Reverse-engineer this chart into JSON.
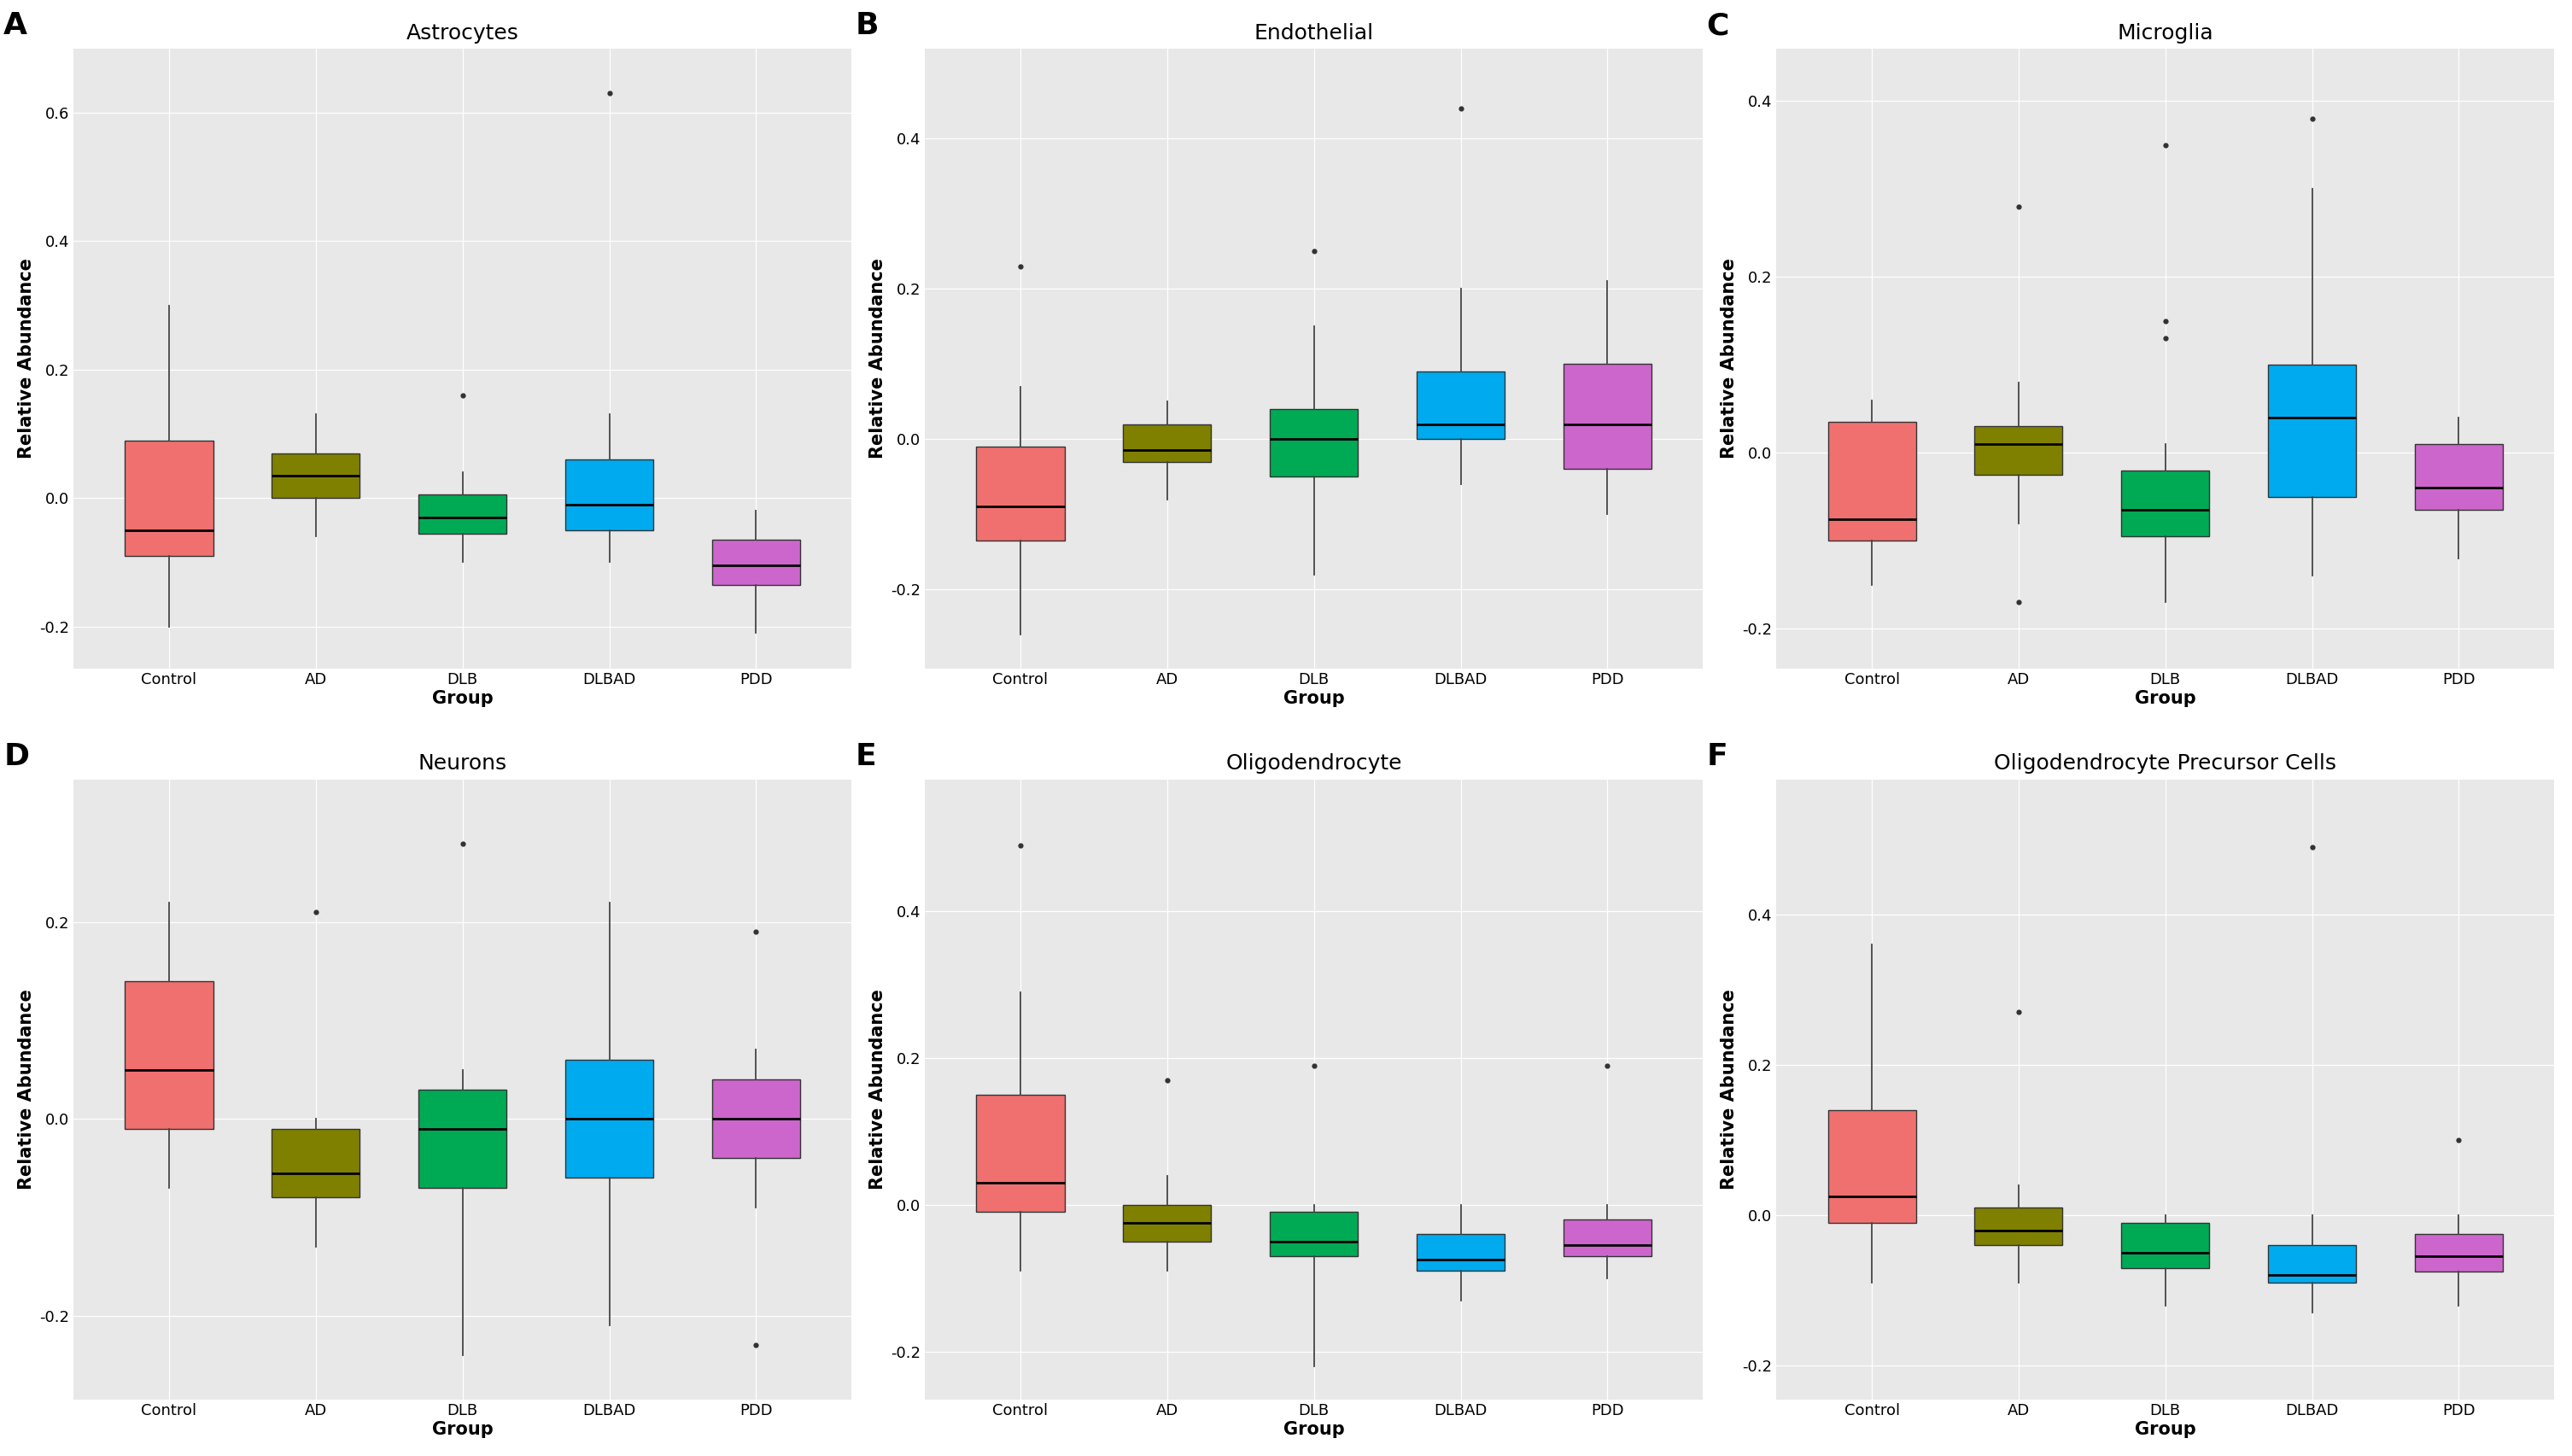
{
  "titles": [
    "Astrocytes",
    "Endothelial",
    "Microglia",
    "Neurons",
    "Oligodendrocyte",
    "Oligodendrocyte Precursor Cells"
  ],
  "panel_labels": [
    "A",
    "B",
    "C",
    "D",
    "E",
    "F"
  ],
  "groups": [
    "Control",
    "AD",
    "DLB",
    "DLBAD",
    "PDD"
  ],
  "colors": [
    "#F07070",
    "#808000",
    "#00AA55",
    "#00AAEE",
    "#CC66CC"
  ],
  "ylabel": "Relative Abundance",
  "xlabel": "Group",
  "background_color": "#E8E8E8",
  "box_data": {
    "Astrocytes": {
      "Control": {
        "q1": -0.09,
        "median": -0.05,
        "q3": 0.09,
        "whislo": -0.2,
        "whishi": 0.3,
        "fliers": []
      },
      "AD": {
        "q1": 0.0,
        "median": 0.035,
        "q3": 0.07,
        "whislo": -0.06,
        "whishi": 0.13,
        "fliers": []
      },
      "DLB": {
        "q1": -0.055,
        "median": -0.03,
        "q3": 0.005,
        "whislo": -0.1,
        "whishi": 0.04,
        "fliers": [
          0.16
        ]
      },
      "DLBAD": {
        "q1": -0.05,
        "median": -0.01,
        "q3": 0.06,
        "whislo": -0.1,
        "whishi": 0.13,
        "fliers": [
          0.63
        ]
      },
      "PDD": {
        "q1": -0.135,
        "median": -0.105,
        "q3": -0.065,
        "whislo": -0.21,
        "whishi": -0.02,
        "fliers": []
      }
    },
    "Endothelial": {
      "Control": {
        "q1": -0.135,
        "median": -0.09,
        "q3": -0.01,
        "whislo": -0.26,
        "whishi": 0.07,
        "fliers": [
          0.23
        ]
      },
      "AD": {
        "q1": -0.03,
        "median": -0.015,
        "q3": 0.02,
        "whislo": -0.08,
        "whishi": 0.05,
        "fliers": []
      },
      "DLB": {
        "q1": -0.05,
        "median": 0.0,
        "q3": 0.04,
        "whislo": -0.18,
        "whishi": 0.15,
        "fliers": [
          0.25
        ]
      },
      "DLBAD": {
        "q1": 0.0,
        "median": 0.02,
        "q3": 0.09,
        "whislo": -0.06,
        "whishi": 0.2,
        "fliers": [
          0.44
        ]
      },
      "PDD": {
        "q1": -0.04,
        "median": 0.02,
        "q3": 0.1,
        "whislo": -0.1,
        "whishi": 0.21,
        "fliers": []
      }
    },
    "Microglia": {
      "Control": {
        "q1": -0.1,
        "median": -0.075,
        "q3": 0.035,
        "whislo": -0.15,
        "whishi": 0.06,
        "fliers": []
      },
      "AD": {
        "q1": -0.025,
        "median": 0.01,
        "q3": 0.03,
        "whislo": -0.08,
        "whishi": 0.08,
        "fliers": [
          -0.17,
          0.28
        ]
      },
      "DLB": {
        "q1": -0.095,
        "median": -0.065,
        "q3": -0.02,
        "whislo": -0.17,
        "whishi": 0.01,
        "fliers": [
          0.13,
          0.15,
          0.35
        ]
      },
      "DLBAD": {
        "q1": -0.05,
        "median": 0.04,
        "q3": 0.1,
        "whislo": -0.14,
        "whishi": 0.3,
        "fliers": [
          0.38
        ]
      },
      "PDD": {
        "q1": -0.065,
        "median": -0.04,
        "q3": 0.01,
        "whislo": -0.12,
        "whishi": 0.04,
        "fliers": []
      }
    },
    "Neurons": {
      "Control": {
        "q1": -0.01,
        "median": 0.05,
        "q3": 0.14,
        "whislo": -0.07,
        "whishi": 0.22,
        "fliers": []
      },
      "AD": {
        "q1": -0.08,
        "median": -0.055,
        "q3": -0.01,
        "whislo": -0.13,
        "whishi": 0.0,
        "fliers": [
          0.21
        ]
      },
      "DLB": {
        "q1": -0.07,
        "median": -0.01,
        "q3": 0.03,
        "whislo": -0.24,
        "whishi": 0.05,
        "fliers": [
          0.28
        ]
      },
      "DLBAD": {
        "q1": -0.06,
        "median": 0.0,
        "q3": 0.06,
        "whislo": -0.21,
        "whishi": 0.22,
        "fliers": []
      },
      "PDD": {
        "q1": -0.04,
        "median": 0.0,
        "q3": 0.04,
        "whislo": -0.09,
        "whishi": 0.07,
        "fliers": [
          -0.23,
          0.19
        ]
      }
    },
    "Oligodendrocyte": {
      "Control": {
        "q1": -0.01,
        "median": 0.03,
        "q3": 0.15,
        "whislo": -0.09,
        "whishi": 0.29,
        "fliers": [
          0.49
        ]
      },
      "AD": {
        "q1": -0.05,
        "median": -0.025,
        "q3": 0.0,
        "whislo": -0.09,
        "whishi": 0.04,
        "fliers": [
          0.17
        ]
      },
      "DLB": {
        "q1": -0.07,
        "median": -0.05,
        "q3": -0.01,
        "whislo": -0.22,
        "whishi": 0.0,
        "fliers": [
          0.19
        ]
      },
      "DLBAD": {
        "q1": -0.09,
        "median": -0.075,
        "q3": -0.04,
        "whislo": -0.13,
        "whishi": 0.0,
        "fliers": []
      },
      "PDD": {
        "q1": -0.07,
        "median": -0.055,
        "q3": -0.02,
        "whislo": -0.1,
        "whishi": 0.0,
        "fliers": [
          0.19
        ]
      }
    },
    "Oligodendrocyte Precursor Cells": {
      "Control": {
        "q1": -0.01,
        "median": 0.025,
        "q3": 0.14,
        "whislo": -0.09,
        "whishi": 0.36,
        "fliers": []
      },
      "AD": {
        "q1": -0.04,
        "median": -0.02,
        "q3": 0.01,
        "whislo": -0.09,
        "whishi": 0.04,
        "fliers": [
          0.27
        ]
      },
      "DLB": {
        "q1": -0.07,
        "median": -0.05,
        "q3": -0.01,
        "whislo": -0.12,
        "whishi": 0.0,
        "fliers": []
      },
      "DLBAD": {
        "q1": -0.09,
        "median": -0.08,
        "q3": -0.04,
        "whislo": -0.13,
        "whishi": 0.0,
        "fliers": [
          0.49
        ]
      },
      "PDD": {
        "q1": -0.075,
        "median": -0.055,
        "q3": -0.025,
        "whislo": -0.12,
        "whishi": 0.0,
        "fliers": [
          0.1
        ]
      }
    }
  },
  "ylims": {
    "Astrocytes": [
      -0.265,
      0.7
    ],
    "Endothelial": [
      -0.305,
      0.52
    ],
    "Microglia": [
      -0.245,
      0.46
    ],
    "Neurons": [
      -0.285,
      0.345
    ],
    "Oligodendrocyte": [
      -0.265,
      0.58
    ],
    "Oligodendrocyte Precursor Cells": [
      -0.245,
      0.58
    ]
  },
  "yticks": {
    "Astrocytes": [
      -0.2,
      0.0,
      0.2,
      0.4,
      0.6
    ],
    "Endothelial": [
      -0.2,
      0.0,
      0.2,
      0.4
    ],
    "Microglia": [
      -0.2,
      0.0,
      0.2,
      0.4
    ],
    "Neurons": [
      -0.2,
      0.0,
      0.2
    ],
    "Oligodendrocyte": [
      -0.2,
      0.0,
      0.2,
      0.4
    ],
    "Oligodendrocyte Precursor Cells": [
      -0.2,
      0.0,
      0.2,
      0.4
    ]
  }
}
